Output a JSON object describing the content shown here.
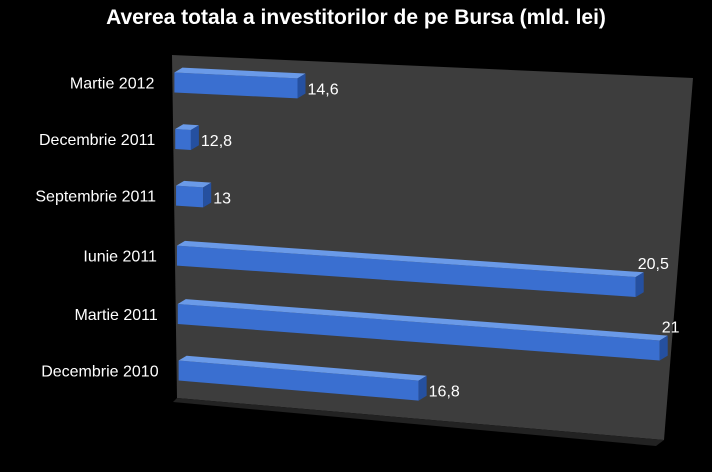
{
  "chart_data": {
    "type": "bar",
    "orientation": "horizontal",
    "title": "Averea totala a investitorilor de pe Bursa (mld. lei)",
    "categories": [
      "Martie 2012",
      "Decembrie 2011",
      "Septembrie 2011",
      "Iunie 2011",
      "Martie 2011",
      "Decembrie 2010"
    ],
    "values": [
      14.6,
      12.8,
      13,
      20.5,
      21,
      16.8
    ],
    "value_labels": [
      "14,6",
      "12,8",
      "13",
      "20,5",
      "21",
      "16,8"
    ],
    "xlim": [
      12.5,
      21.2
    ],
    "grid": false,
    "legend": "none",
    "colors": {
      "bar": "#3a6fd0",
      "bar_top": "#6a9ae8",
      "bar_side": "#2550a0",
      "wall": "#3d3d3d",
      "floor": "#222222",
      "text": "#ffffff",
      "background": "#000000"
    }
  }
}
